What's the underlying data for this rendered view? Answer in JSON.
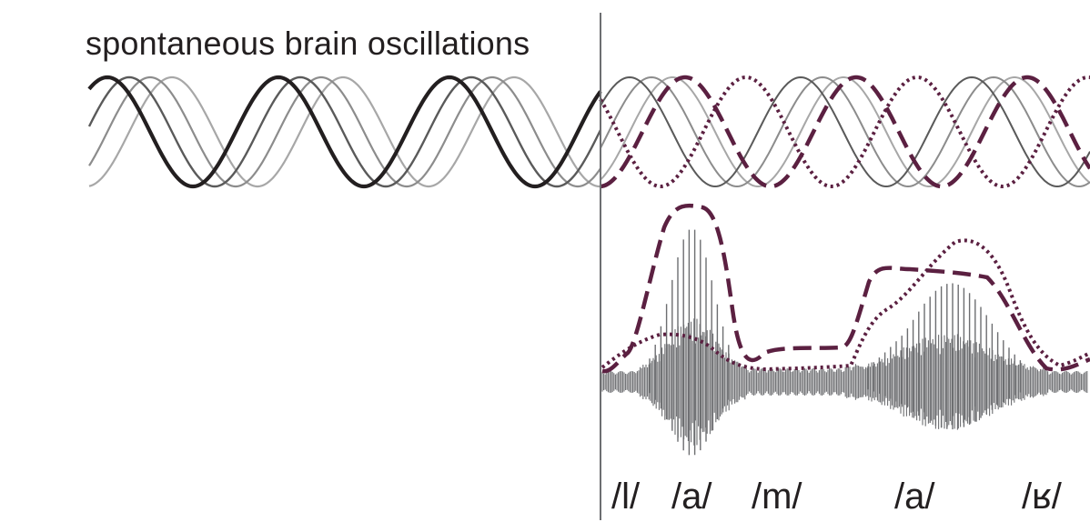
{
  "title": "spontaneous brain oscillations",
  "phonemes": [
    "/l/",
    "/a/",
    "/m/",
    "/a/",
    "/ʁ/"
  ],
  "colors": {
    "text": "#231f20",
    "oscillation_dark": "#231f20",
    "oscillation_mid": "#5a5a5a",
    "oscillation_light": "#8c8c8c",
    "oscillation_lightest": "#a7a7a7",
    "entrained": "#5b2041",
    "waveform": "#6d6e71",
    "divider": "#6d6e71"
  },
  "icons": {
    "solid_curve": "solid-line",
    "dashed_curve": "dashed-line",
    "dotted_curve": "dotted-line"
  }
}
